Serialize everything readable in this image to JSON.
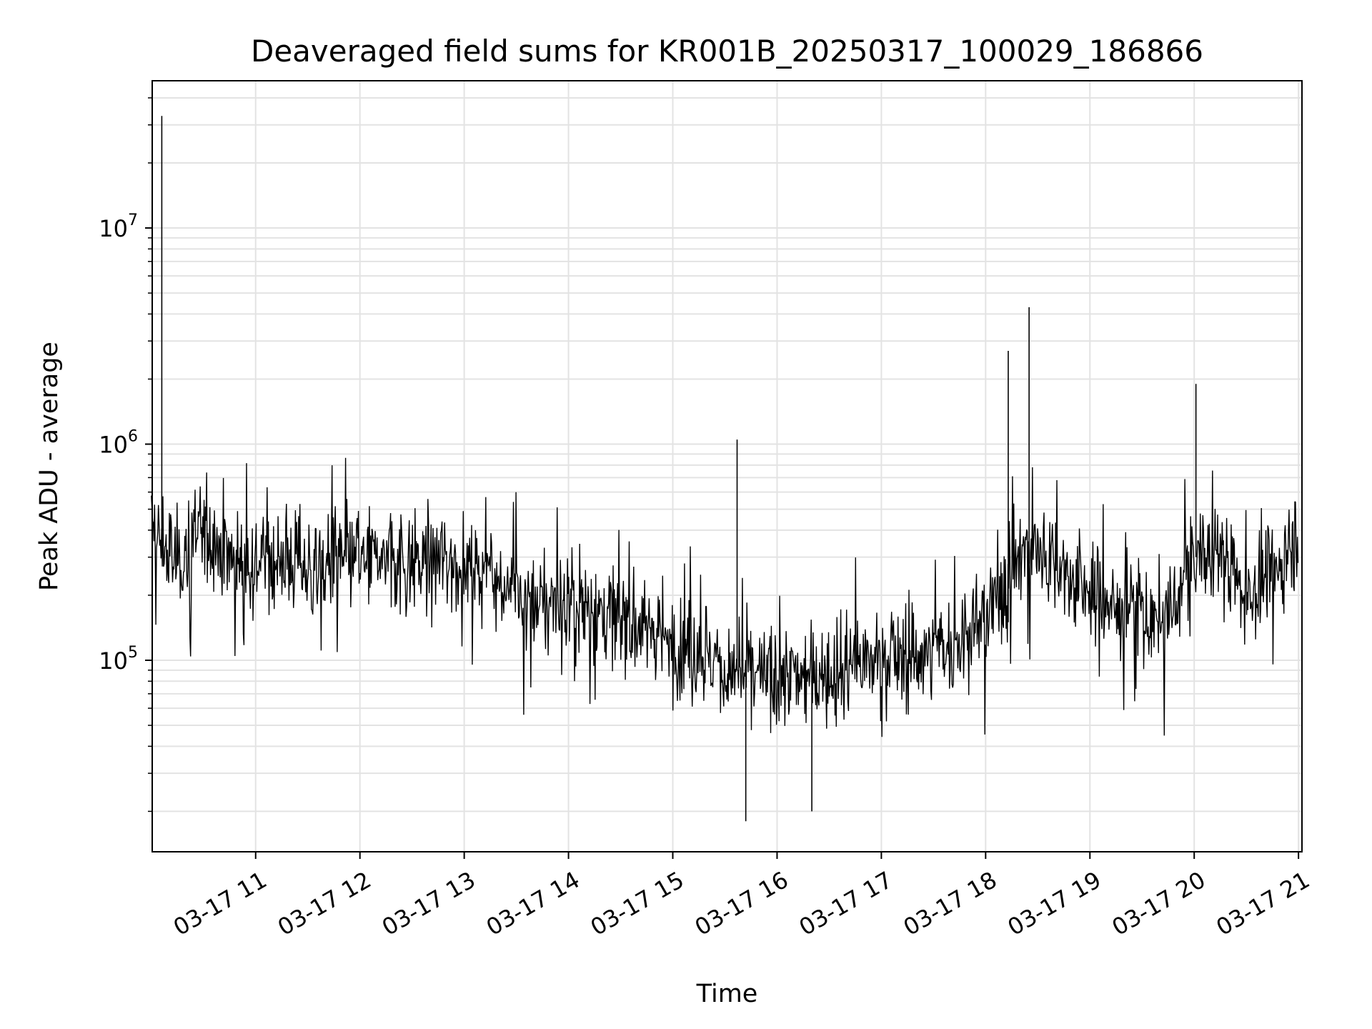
{
  "chart_data": {
    "type": "line",
    "title": "Deaveraged field sums for KR001B_20250317_100029_186866",
    "xlabel": "Time",
    "ylabel": "Peak ADU - average",
    "yscale": "log",
    "ylim": [
      13000,
      48000000
    ],
    "xlim": [
      "2025-03-17 10:00:29",
      "2025-03-17 21:02:00"
    ],
    "x_tick_labels": [
      "03-17 11",
      "03-17 12",
      "03-17 13",
      "03-17 14",
      "03-17 15",
      "03-17 16",
      "03-17 17",
      "03-17 18",
      "03-17 19",
      "03-17 20",
      "03-17 21"
    ],
    "y_tick_labels": [
      {
        "base": "10",
        "exp": "5",
        "value": 100000
      },
      {
        "base": "10",
        "exp": "6",
        "value": 1000000
      },
      {
        "base": "10",
        "exp": "7",
        "value": 10000000
      }
    ],
    "grid": true,
    "line_color": "#000000",
    "series": [
      {
        "x": [
          "2025-03-17 10:00",
          "2025-03-17 10:05",
          "2025-03-17 10:15",
          "2025-03-17 10:30",
          "2025-03-17 10:45",
          "2025-03-17 11:00",
          "2025-03-17 11:15",
          "2025-03-17 11:30",
          "2025-03-17 11:45",
          "2025-03-17 12:00",
          "2025-03-17 12:15",
          "2025-03-17 12:30",
          "2025-03-17 12:45",
          "2025-03-17 13:00",
          "2025-03-17 13:15",
          "2025-03-17 13:30",
          "2025-03-17 13:45",
          "2025-03-17 14:00",
          "2025-03-17 14:15",
          "2025-03-17 14:30",
          "2025-03-17 14:45",
          "2025-03-17 15:00",
          "2025-03-17 15:15",
          "2025-03-17 15:30",
          "2025-03-17 15:45",
          "2025-03-17 16:00",
          "2025-03-17 16:15",
          "2025-03-17 16:30",
          "2025-03-17 16:45",
          "2025-03-17 17:00",
          "2025-03-17 17:15",
          "2025-03-17 17:30",
          "2025-03-17 17:45",
          "2025-03-17 18:00",
          "2025-03-17 18:15",
          "2025-03-17 18:30",
          "2025-03-17 18:45",
          "2025-03-17 19:00",
          "2025-03-17 19:15",
          "2025-03-17 19:30",
          "2025-03-17 19:45",
          "2025-03-17 20:00",
          "2025-03-17 20:15",
          "2025-03-17 20:30",
          "2025-03-17 20:45",
          "2025-03-17 21:00"
        ],
        "y": [
          400000,
          350000,
          280000,
          420000,
          300000,
          290000,
          300000,
          270000,
          280000,
          290000,
          300000,
          280000,
          290000,
          280000,
          260000,
          200000,
          180000,
          190000,
          170000,
          150000,
          140000,
          120000,
          110000,
          90000,
          85000,
          80000,
          85000,
          90000,
          95000,
          100000,
          105000,
          110000,
          120000,
          150000,
          280000,
          350000,
          250000,
          200000,
          180000,
          160000,
          150000,
          300000,
          320000,
          200000,
          250000,
          400000
        ]
      }
    ],
    "spikes": [
      {
        "x": "2025-03-17 10:06",
        "y": 33000000
      },
      {
        "x": "2025-03-17 18:13",
        "y": 2700000
      },
      {
        "x": "2025-03-17 18:25",
        "y": 4300000
      },
      {
        "x": "2025-03-17 20:01",
        "y": 1900000
      },
      {
        "x": "2025-03-17 15:37",
        "y": 1050000
      },
      {
        "x": "2025-03-17 15:42",
        "y": 18000
      },
      {
        "x": "2025-03-17 16:20",
        "y": 20000
      }
    ]
  }
}
